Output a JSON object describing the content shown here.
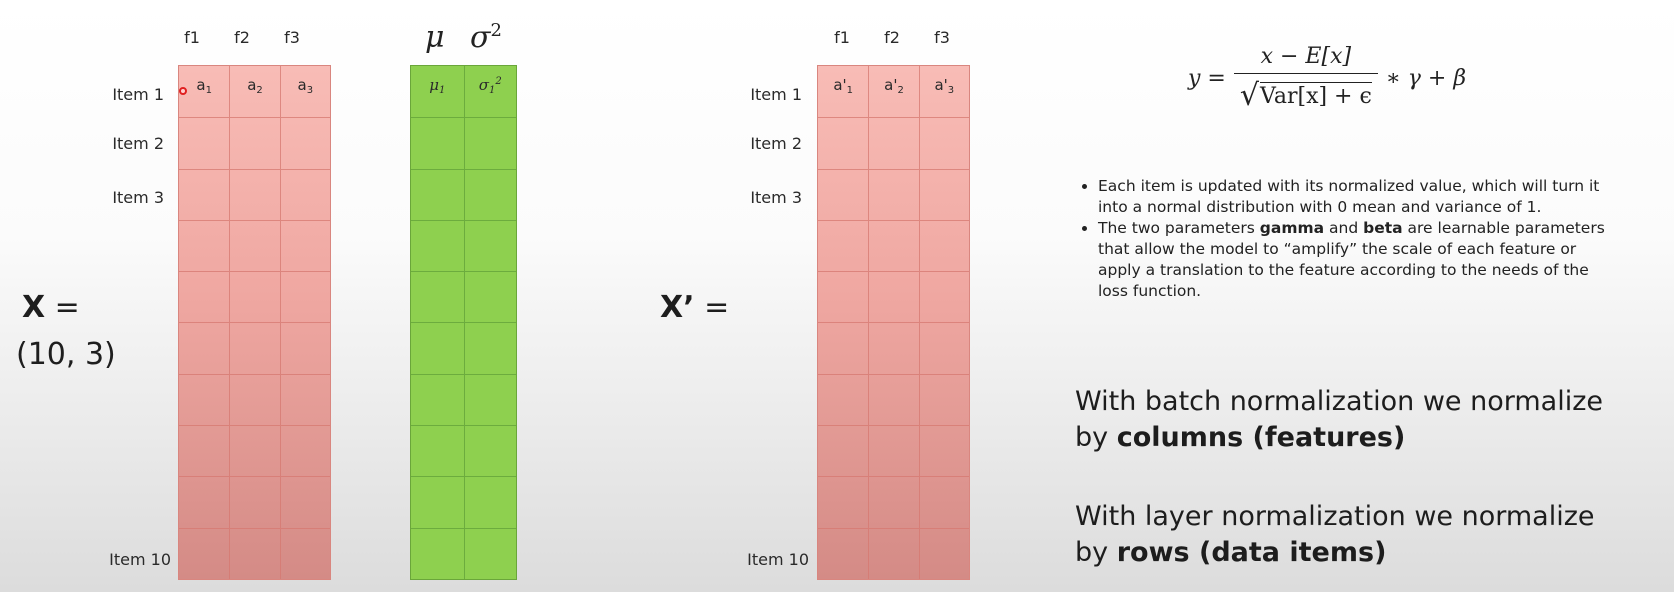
{
  "left_matrix": {
    "name": "X",
    "shape": "(10, 3)",
    "columns": [
      "f1",
      "f2",
      "f3"
    ],
    "first_row": [
      "a1",
      "a2",
      "a3"
    ],
    "row_labels": {
      "first": "Item 1",
      "second": "Item 2",
      "third": "Item 3",
      "last": "Item 10"
    }
  },
  "stats": {
    "mu_symbol": "μ",
    "sigma_symbol": "σ",
    "sigma_exp": "2",
    "first_row": {
      "mu": "μ1",
      "sigma": "σ1²"
    }
  },
  "right_matrix": {
    "name": "X’",
    "columns": [
      "f1",
      "f2",
      "f3"
    ],
    "first_row": [
      "a'1",
      "a'2",
      "a'3"
    ],
    "row_labels": {
      "first": "Item 1",
      "second": "Item 2",
      "third": "Item 3",
      "last": "Item 10"
    }
  },
  "formula": {
    "lhs": "y =",
    "numerator": "x − E[x]",
    "denominator": "Var[x] + ϵ",
    "tail": "∗ γ + β"
  },
  "bullets": [
    {
      "text": "Each item is updated with its normalized value, which will turn it into a normal distribution with 0 mean and variance of 1."
    },
    {
      "pre": "The two parameters ",
      "b1": "gamma",
      "mid": " and ",
      "b2": "beta",
      "post": " are learnable parameters that allow the model to “amplify” the scale of each feature or apply a translation to the feature according to the needs of the loss function."
    }
  ],
  "statements": {
    "batch_pre": "With batch normalization we normalize by ",
    "batch_bold": "columns (features)",
    "layer_pre": "With layer normalization we normalize by ",
    "layer_bold": "rows (data items)"
  }
}
